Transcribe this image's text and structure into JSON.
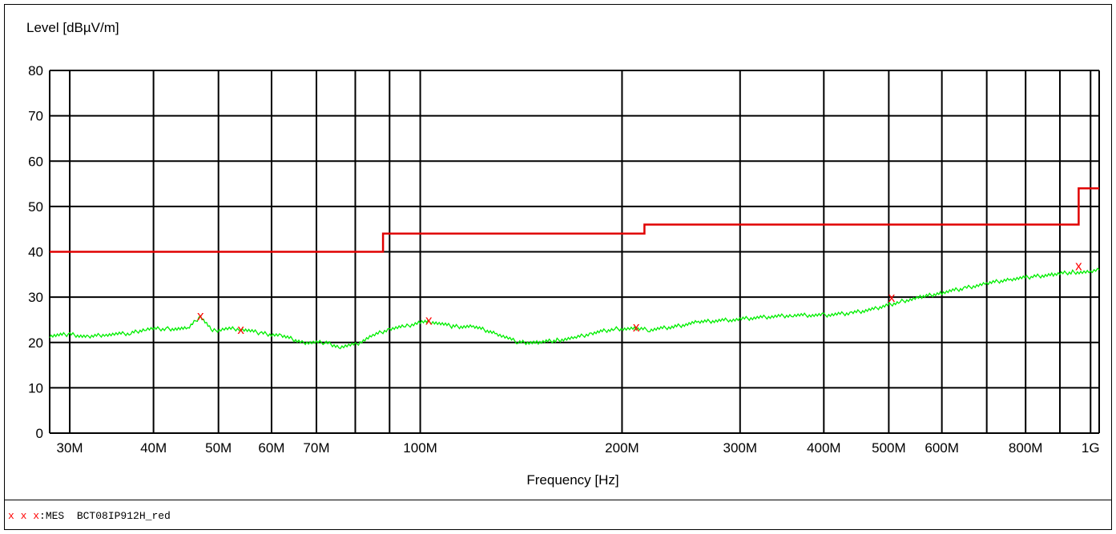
{
  "chart_data": {
    "type": "line",
    "xscale": "log",
    "xlabel": "Frequency [Hz]",
    "ylabel": "Level [dBµV/m]",
    "xlim": [
      28000000,
      1030000000
    ],
    "ylim": [
      0,
      80
    ],
    "grid": true,
    "y_ticks": [
      0,
      10,
      20,
      30,
      40,
      50,
      60,
      70,
      80
    ],
    "x_gridlines": [
      30000000,
      40000000,
      50000000,
      60000000,
      70000000,
      80000000,
      90000000,
      100000000,
      200000000,
      300000000,
      400000000,
      500000000,
      600000000,
      700000000,
      800000000,
      900000000,
      1000000000
    ],
    "x_ticks": [
      {
        "value": 30000000,
        "label": "30M"
      },
      {
        "value": 40000000,
        "label": "40M"
      },
      {
        "value": 50000000,
        "label": "50M"
      },
      {
        "value": 60000000,
        "label": "60M"
      },
      {
        "value": 70000000,
        "label": "70M"
      },
      {
        "value": 100000000,
        "label": "100M"
      },
      {
        "value": 200000000,
        "label": "200M"
      },
      {
        "value": 300000000,
        "label": "300M"
      },
      {
        "value": 400000000,
        "label": "400M"
      },
      {
        "value": 500000000,
        "label": "500M"
      },
      {
        "value": 600000000,
        "label": "600M"
      },
      {
        "value": 800000000,
        "label": "800M"
      },
      {
        "value": 1000000000,
        "label": "1G"
      }
    ],
    "limit_line": {
      "color": "#e00000",
      "points": [
        [
          28000000,
          40
        ],
        [
          88000000,
          40
        ],
        [
          88000000,
          44
        ],
        [
          216000000,
          44
        ],
        [
          216000000,
          46
        ],
        [
          960000000,
          46
        ],
        [
          960000000,
          54
        ],
        [
          1030000000,
          54
        ]
      ]
    },
    "measured_trace": {
      "color": "#00ee00",
      "points": [
        [
          28000000,
          21.5
        ],
        [
          30000000,
          21.8
        ],
        [
          32000000,
          21.2
        ],
        [
          34000000,
          21.8
        ],
        [
          37000000,
          22.0
        ],
        [
          39000000,
          23.0
        ],
        [
          42000000,
          23.0
        ],
        [
          45000000,
          23.0
        ],
        [
          47000000,
          25.8
        ],
        [
          49000000,
          22.5
        ],
        [
          51000000,
          23.0
        ],
        [
          54000000,
          23.0
        ],
        [
          58000000,
          22.0
        ],
        [
          62000000,
          21.5
        ],
        [
          67000000,
          20.0
        ],
        [
          72000000,
          20.0
        ],
        [
          76000000,
          19.0
        ],
        [
          80000000,
          19.5
        ],
        [
          85000000,
          21.5
        ],
        [
          90000000,
          23.0
        ],
        [
          95000000,
          23.5
        ],
        [
          100000000,
          24.5
        ],
        [
          105000000,
          24.5
        ],
        [
          112000000,
          23.5
        ],
        [
          120000000,
          23.5
        ],
        [
          130000000,
          22.0
        ],
        [
          140000000,
          20.0
        ],
        [
          150000000,
          20.0
        ],
        [
          160000000,
          20.5
        ],
        [
          170000000,
          21.0
        ],
        [
          180000000,
          22.0
        ],
        [
          195000000,
          23.0
        ],
        [
          210000000,
          23.0
        ],
        [
          220000000,
          22.8
        ],
        [
          240000000,
          23.5
        ],
        [
          260000000,
          24.5
        ],
        [
          290000000,
          25.0
        ],
        [
          320000000,
          25.5
        ],
        [
          360000000,
          26.0
        ],
        [
          400000000,
          26.0
        ],
        [
          440000000,
          26.5
        ],
        [
          480000000,
          27.5
        ],
        [
          520000000,
          29.0
        ],
        [
          560000000,
          30.0
        ],
        [
          600000000,
          31.0
        ],
        [
          650000000,
          32.0
        ],
        [
          700000000,
          33.0
        ],
        [
          760000000,
          34.0
        ],
        [
          820000000,
          34.5
        ],
        [
          880000000,
          35.0
        ],
        [
          940000000,
          35.5
        ],
        [
          1000000000,
          35.5
        ],
        [
          1030000000,
          36.0
        ]
      ]
    },
    "markers": {
      "color": "#ff0000",
      "symbol": "x",
      "points": [
        [
          47000000,
          26
        ],
        [
          54000000,
          23
        ],
        [
          103000000,
          25
        ],
        [
          210000000,
          23.5
        ],
        [
          505000000,
          30
        ],
        [
          960000000,
          37
        ]
      ]
    }
  },
  "legend": {
    "marker": "x x x",
    "label": ":MES  BCT08IP912H_red"
  }
}
